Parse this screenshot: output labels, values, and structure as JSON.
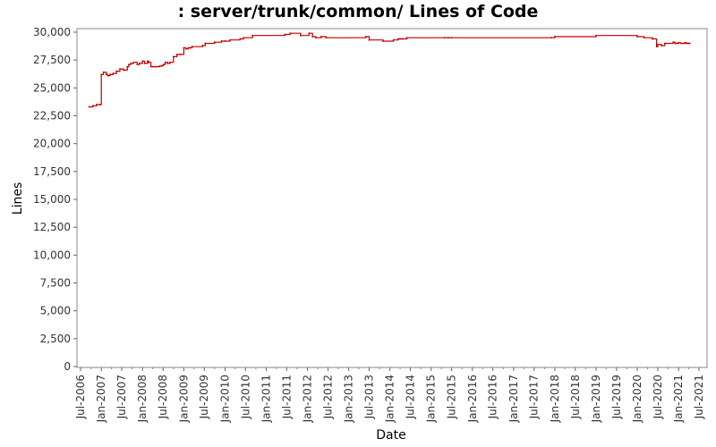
{
  "chart_data": {
    "type": "line",
    "title": ": server/trunk/common/ Lines of Code",
    "xlabel": "Date",
    "ylabel": "Lines",
    "ylim": [
      0,
      30000
    ],
    "xlim": [
      "2006-07-01",
      "2021-07-01"
    ],
    "grid": false,
    "legend": "none",
    "line_color": "#c00000",
    "y_ticks": [
      0,
      2500,
      5000,
      7500,
      10000,
      12500,
      15000,
      17500,
      20000,
      22500,
      25000,
      27500,
      30000
    ],
    "y_tick_labels": [
      "0",
      "2,500",
      "5,000",
      "7,500",
      "10,000",
      "12,500",
      "15,000",
      "17,500",
      "20,000",
      "22,500",
      "25,000",
      "27,500",
      "30,000"
    ],
    "x_ticks": [
      "2006-07-01",
      "2007-01-01",
      "2007-07-01",
      "2008-01-01",
      "2008-07-01",
      "2009-01-01",
      "2009-07-01",
      "2010-01-01",
      "2010-07-01",
      "2011-01-01",
      "2011-07-01",
      "2012-01-01",
      "2012-07-01",
      "2013-01-01",
      "2013-07-01",
      "2014-01-01",
      "2014-07-01",
      "2015-01-01",
      "2015-07-01",
      "2016-01-01",
      "2016-07-01",
      "2017-01-01",
      "2017-07-01",
      "2018-01-01",
      "2018-07-01",
      "2019-01-01",
      "2019-07-01",
      "2020-01-01",
      "2020-07-01",
      "2021-01-01",
      "2021-07-01"
    ],
    "x_tick_labels": [
      "Jul-2006",
      "Jan-2007",
      "Jul-2007",
      "Jan-2008",
      "Jul-2008",
      "Jan-2009",
      "Jul-2009",
      "Jan-2010",
      "Jul-2010",
      "Jan-2011",
      "Jul-2011",
      "Jan-2012",
      "Jul-2012",
      "Jan-2013",
      "Jul-2013",
      "Jan-2014",
      "Jul-2014",
      "Jan-2015",
      "Jul-2015",
      "Jan-2016",
      "Jul-2016",
      "Jan-2017",
      "Jul-2017",
      "Jan-2018",
      "Jul-2018",
      "Jan-2019",
      "Jul-2019",
      "Jan-2020",
      "Jul-2020",
      "Jan-2021",
      "Jul-2021"
    ],
    "series": [
      {
        "x": [
          "2006-09-15",
          "2006-10-20",
          "2006-11-20",
          "2006-12-20",
          "2007-01-01",
          "2007-01-20",
          "2007-02-15",
          "2007-03-01",
          "2007-03-20",
          "2007-04-15",
          "2007-05-15",
          "2007-06-15",
          "2007-07-15",
          "2007-08-20",
          "2007-09-01",
          "2007-09-20",
          "2007-10-15",
          "2007-11-15",
          "2007-12-05",
          "2008-01-01",
          "2008-01-20",
          "2008-02-15",
          "2008-02-25",
          "2008-03-15",
          "2008-04-01",
          "2008-05-01",
          "2008-06-01",
          "2008-06-20",
          "2008-07-05",
          "2008-07-20",
          "2008-08-10",
          "2008-09-01",
          "2008-10-01",
          "2008-11-01",
          "2008-12-01",
          "2009-01-01",
          "2009-01-20",
          "2009-02-10",
          "2009-03-01",
          "2009-03-15",
          "2009-06-15",
          "2009-07-10",
          "2009-10-01",
          "2009-12-01",
          "2010-01-01",
          "2010-02-15",
          "2010-05-15",
          "2010-06-15",
          "2010-09-01",
          "2011-06-15",
          "2011-08-01",
          "2011-11-01",
          "2012-01-15",
          "2012-02-15",
          "2012-03-15",
          "2012-05-01",
          "2012-06-15",
          "2013-06-01",
          "2013-07-01",
          "2013-11-01",
          "2014-02-01",
          "2014-03-15",
          "2014-04-01",
          "2014-04-20",
          "2014-06-01",
          "2015-05-01",
          "2015-06-01",
          "2015-07-01",
          "2017-12-01",
          "2018-01-01",
          "2019-01-01",
          "2020-01-01",
          "2020-03-01",
          "2020-05-15",
          "2020-06-20",
          "2020-07-01",
          "2020-08-01",
          "2020-09-01",
          "2020-11-15",
          "2020-12-01",
          "2020-12-15",
          "2021-01-01",
          "2021-01-20",
          "2021-02-15",
          "2021-03-01",
          "2021-03-15",
          "2021-04-01",
          "2021-04-10"
        ],
        "values": [
          23300,
          23400,
          23500,
          23500,
          26200,
          26400,
          26200,
          26100,
          26200,
          26300,
          26500,
          26700,
          26600,
          26900,
          27100,
          27200,
          27300,
          27100,
          27200,
          27400,
          27200,
          27400,
          27300,
          26900,
          26900,
          26900,
          26950,
          27000,
          27100,
          27300,
          27200,
          27300,
          27800,
          28000,
          28000,
          28600,
          28500,
          28600,
          28600,
          28700,
          28800,
          29000,
          29100,
          29200,
          29200,
          29300,
          29400,
          29500,
          29700,
          29800,
          29900,
          29700,
          29900,
          29600,
          29500,
          29600,
          29500,
          29600,
          29300,
          29200,
          29300,
          29400,
          29400,
          29400,
          29500,
          29500,
          29500,
          29500,
          29500,
          29600,
          29700,
          29600,
          29500,
          29400,
          28700,
          28900,
          28800,
          29000,
          29100,
          29000,
          29000,
          29050,
          29000,
          29000,
          29050,
          29000,
          29000,
          29000
        ]
      }
    ]
  }
}
